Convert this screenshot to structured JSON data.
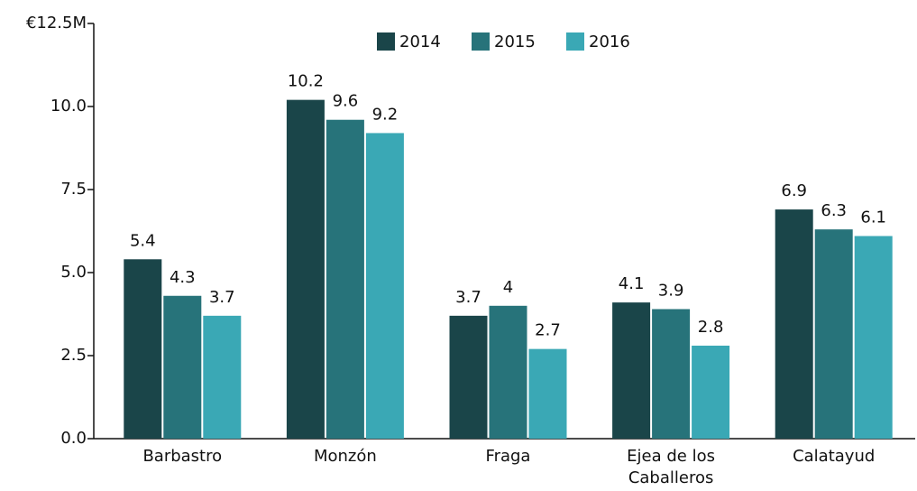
{
  "chart_data": {
    "type": "bar",
    "categories": [
      "Barbastro",
      "Monzón",
      "Fraga",
      "Ejea de los Caballeros",
      "Calatayud"
    ],
    "series": [
      {
        "name": "2014",
        "color": "#1a4549",
        "values": [
          5.4,
          10.2,
          3.7,
          4.1,
          6.9
        ]
      },
      {
        "name": "2015",
        "color": "#27737a",
        "values": [
          4.3,
          9.6,
          4.0,
          3.9,
          6.3
        ]
      },
      {
        "name": "2016",
        "color": "#3aa8b5",
        "values": [
          3.7,
          9.2,
          2.7,
          2.8,
          6.1
        ]
      }
    ],
    "ylim": [
      0,
      12.5
    ],
    "yticks": [
      {
        "value": 0,
        "label": "0.0"
      },
      2.5,
      {
        "value": 5,
        "label": "5.0"
      },
      7.5,
      {
        "value": 10,
        "label": "10.0"
      },
      {
        "value": 12.5,
        "label": "€12.5M"
      }
    ],
    "legend": "top"
  }
}
